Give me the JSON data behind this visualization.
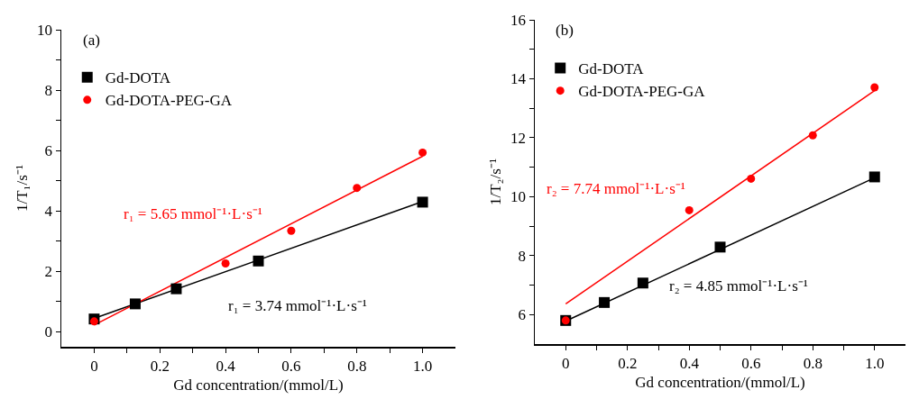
{
  "chart_data": [
    {
      "type": "scatter",
      "xlabel": "Gd concentration/(mmol/L)",
      "ylabel": "1/T₁/s⁻¹",
      "xlim": [
        -0.1,
        1.1
      ],
      "ylim": [
        -0.5,
        10
      ],
      "xticks": [
        0,
        {
          "value": 0.1,
          "label": null
        },
        0.2,
        {
          "value": 0.3,
          "label": null
        },
        0.4,
        {
          "value": 0.5,
          "label": null
        },
        0.6,
        {
          "value": 0.7,
          "label": null
        },
        0.8,
        {
          "value": 0.9,
          "label": null
        },
        {
          "value": 1,
          "label": "1.0"
        }
      ],
      "yticks": [
        0,
        {
          "value": 1,
          "label": null
        },
        2,
        {
          "value": 3,
          "label": null
        },
        4,
        {
          "value": 5,
          "label": null
        },
        6,
        {
          "value": 7,
          "label": null
        },
        8,
        {
          "value": 9,
          "label": null
        },
        10
      ],
      "grid": false,
      "legend": "top left",
      "annotations": [
        "(a)",
        "r₁ = 5.65 mmol⁻¹·L·s⁻¹",
        "r₁ = 3.74 mmol⁻¹·L·s⁻¹"
      ],
      "series": [
        {
          "name": "Gd-DOTA",
          "color": "#000000",
          "marker": "square",
          "x": [
            0,
            0.125,
            0.25,
            0.5,
            1.0
          ],
          "values": [
            0.42,
            0.92,
            1.42,
            2.34,
            4.29
          ]
        },
        {
          "name": "Gd-DOTA-PEG-GA",
          "color": "#ff0000",
          "marker": "circle",
          "x": [
            0,
            0.4,
            0.6,
            0.8,
            1.0
          ],
          "values": [
            0.34,
            2.26,
            3.34,
            4.76,
            5.93
          ]
        },
        {
          "type": "line",
          "color": "#000000",
          "marker": "none",
          "x": [
            0,
            1
          ],
          "values": [
            0.44,
            4.31
          ]
        },
        {
          "type": "line",
          "color": "#ff0000",
          "marker": "none",
          "x": [
            0,
            1
          ],
          "values": [
            0.22,
            5.81
          ]
        }
      ]
    },
    {
      "type": "scatter",
      "xlabel": "Gd concentration/(mmol/L)",
      "ylabel": "1/T₂/s⁻¹",
      "xlim": [
        -0.1,
        1.1
      ],
      "ylim": [
        5,
        16
      ],
      "xticks": [
        0,
        {
          "value": 0.1,
          "label": null
        },
        0.2,
        {
          "value": 0.3,
          "label": null
        },
        0.4,
        {
          "value": 0.5,
          "label": null
        },
        0.6,
        {
          "value": 0.7,
          "label": null
        },
        0.8,
        {
          "value": 0.9,
          "label": null
        },
        {
          "value": 1,
          "label": "1.0"
        }
      ],
      "yticks": [
        6,
        {
          "value": 7,
          "label": null
        },
        8,
        {
          "value": 9,
          "label": null
        },
        10,
        {
          "value": 11,
          "label": null
        },
        12,
        {
          "value": 13,
          "label": null
        },
        14,
        {
          "value": 15,
          "label": null
        },
        16
      ],
      "grid": false,
      "legend": "top left",
      "annotations": [
        "(b)",
        "r₂ = 7.74 mmol⁻¹·L·s⁻¹",
        "r₂ = 4.85 mmol⁻¹·L·s⁻¹"
      ],
      "series": [
        {
          "name": "Gd-DOTA",
          "color": "#000000",
          "marker": "square",
          "x": [
            0,
            0.125,
            0.25,
            0.5,
            1.0
          ],
          "values": [
            5.8,
            6.41,
            7.07,
            8.29,
            10.67
          ]
        },
        {
          "name": "Gd-DOTA-PEG-GA",
          "color": "#ff0000",
          "marker": "circle",
          "x": [
            0,
            0.4,
            0.6,
            0.8,
            1.0
          ],
          "values": [
            5.8,
            9.54,
            10.61,
            12.08,
            13.71
          ]
        },
        {
          "type": "line",
          "color": "#000000",
          "marker": "none",
          "x": [
            0,
            1
          ],
          "values": [
            5.78,
            10.64
          ]
        },
        {
          "type": "line",
          "color": "#ff0000",
          "marker": "none",
          "x": [
            0,
            1
          ],
          "values": [
            6.36,
            13.6
          ]
        }
      ]
    }
  ]
}
